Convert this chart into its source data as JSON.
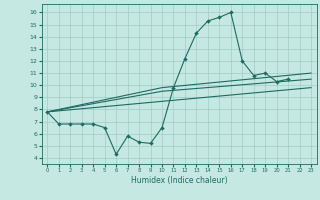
{
  "xlabel": "Humidex (Indice chaleur)",
  "xlim": [
    -0.5,
    23.5
  ],
  "ylim": [
    3.5,
    16.7
  ],
  "xticks": [
    0,
    1,
    2,
    3,
    4,
    5,
    6,
    7,
    8,
    9,
    10,
    11,
    12,
    13,
    14,
    15,
    16,
    17,
    18,
    19,
    20,
    21,
    22,
    23
  ],
  "yticks": [
    4,
    5,
    6,
    7,
    8,
    9,
    10,
    11,
    12,
    13,
    14,
    15,
    16
  ],
  "bg_color": "#c5e8e2",
  "grid_color": "#9fccc5",
  "line_color": "#1d6b62",
  "lw": 0.8,
  "ms": 2.0,
  "curve_main_x": [
    0,
    1,
    2,
    3,
    4,
    5,
    6,
    7,
    8,
    9,
    10,
    11,
    12,
    13,
    14,
    15,
    16,
    17,
    18,
    19,
    20,
    21
  ],
  "curve_main_y": [
    7.8,
    6.8,
    6.8,
    6.8,
    6.8,
    6.5,
    4.3,
    5.8,
    5.3,
    5.2,
    6.5,
    9.8,
    12.2,
    14.3,
    15.3,
    15.6,
    16.0,
    12.0,
    10.8,
    11.0,
    10.3,
    10.5
  ],
  "line1_x": [
    0,
    23
  ],
  "line1_y": [
    7.8,
    9.8
  ],
  "line2_x": [
    0,
    10,
    23
  ],
  "line2_y": [
    7.8,
    9.5,
    10.5
  ],
  "line3_x": [
    0,
    10,
    23
  ],
  "line3_y": [
    7.8,
    9.8,
    11.0
  ]
}
